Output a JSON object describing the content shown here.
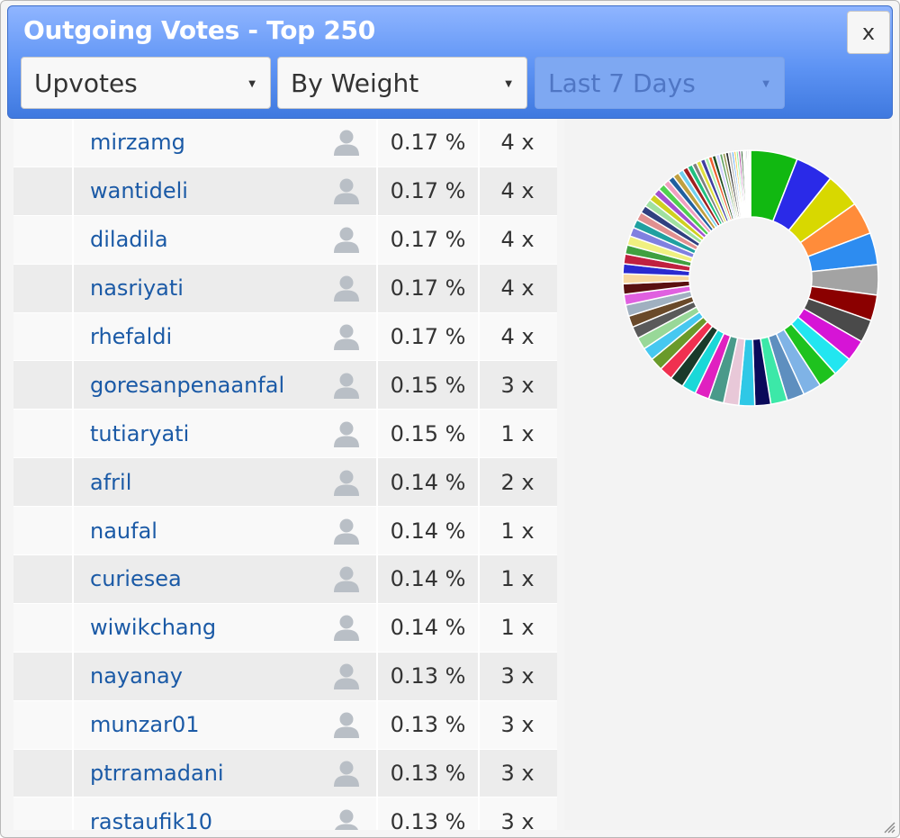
{
  "header": {
    "title": "Outgoing Votes - Top 250",
    "close_label": "x"
  },
  "filters": {
    "vote_type": "Upvotes",
    "sort_by": "By Weight",
    "period": "Last 7 Days"
  },
  "rows": [
    {
      "name": "mirzamg",
      "percent": "0.17 %",
      "count": "4 x"
    },
    {
      "name": "wantideli",
      "percent": "0.17 %",
      "count": "4 x"
    },
    {
      "name": "diladila",
      "percent": "0.17 %",
      "count": "4 x"
    },
    {
      "name": "nasriyati",
      "percent": "0.17 %",
      "count": "4 x"
    },
    {
      "name": "rhefaldi",
      "percent": "0.17 %",
      "count": "4 x"
    },
    {
      "name": "goresanpenaanfal",
      "percent": "0.15 %",
      "count": "3 x"
    },
    {
      "name": "tutiaryati",
      "percent": "0.15 %",
      "count": "1 x"
    },
    {
      "name": "afril",
      "percent": "0.14 %",
      "count": "2 x"
    },
    {
      "name": "naufal",
      "percent": "0.14 %",
      "count": "1 x"
    },
    {
      "name": "curiesea",
      "percent": "0.14 %",
      "count": "1 x"
    },
    {
      "name": "wiwikchang",
      "percent": "0.14 %",
      "count": "1 x"
    },
    {
      "name": "nayanay",
      "percent": "0.13 %",
      "count": "3 x"
    },
    {
      "name": "munzar01",
      "percent": "0.13 %",
      "count": "3 x"
    },
    {
      "name": "ptrramadani",
      "percent": "0.13 %",
      "count": "3 x"
    },
    {
      "name": "rastaufik10",
      "percent": "0.13 %",
      "count": "3 x"
    }
  ],
  "donut": {
    "slice_weights": [
      6.2,
      5.0,
      4.6,
      4.3,
      4.2,
      4.0,
      3.4,
      3.0,
      2.8,
      2.6,
      2.5,
      2.4,
      2.3,
      2.2,
      2.1,
      2.1,
      2.0,
      2.0,
      1.9,
      1.9,
      1.8,
      1.8,
      1.7,
      1.7,
      1.6,
      1.6,
      1.5,
      1.5,
      1.4,
      1.4,
      1.3,
      1.3,
      1.3,
      1.2,
      1.2,
      1.2,
      1.1,
      1.1,
      1.0,
      1.0,
      0.9,
      0.9,
      0.9,
      0.8,
      0.8,
      0.8,
      0.7,
      0.7,
      0.7,
      0.6,
      0.6,
      0.6,
      0.5,
      0.5,
      0.5,
      0.5,
      0.4,
      0.4,
      0.4,
      0.4,
      0.3,
      0.3,
      0.3,
      0.3,
      0.3,
      0.2,
      0.2,
      0.2,
      0.2,
      0.2
    ],
    "colors": [
      "#11b811",
      "#2a2ae8",
      "#d8d800",
      "#ff8c3a",
      "#2d8cf0",
      "#a3a3a3",
      "#8b0000",
      "#4a4a4a",
      "#d614d6",
      "#22e6f0",
      "#1ec21e",
      "#7fb3e6",
      "#5e8fbf",
      "#3ce8a8",
      "#0a0a5a",
      "#2fc8e6",
      "#e8c8d8",
      "#4a9a8a",
      "#e020c0",
      "#1ad8d8",
      "#1a3a2a",
      "#f03050",
      "#6a9a2a",
      "#46c8f0",
      "#98d898",
      "#5a5a5a",
      "#6a4a2a",
      "#a0b0c0",
      "#e060e0",
      "#5a1010",
      "#f8d8a0",
      "#2a2ad0",
      "#c02040",
      "#40a040",
      "#f0f080",
      "#8080e0",
      "#20a0a0",
      "#e09090",
      "#304080",
      "#a0e0a0",
      "#d0d020",
      "#a050d0",
      "#50d050",
      "#f0a0c0",
      "#2060a0",
      "#c0a040",
      "#70d0f0",
      "#a02020",
      "#20c080",
      "#808080",
      "#e0e040",
      "#4040a0",
      "#b0f0b0",
      "#f06030",
      "#205020",
      "#d0d0ff",
      "#60a060",
      "#a0a060",
      "#303030",
      "#c0c0c0",
      "#50a0f0",
      "#f0c040",
      "#80f0a0",
      "#a03090",
      "#306030",
      "#e0e0e0",
      "#90c090",
      "#404060",
      "#a0a0a0",
      "#e0f0d0"
    ]
  }
}
